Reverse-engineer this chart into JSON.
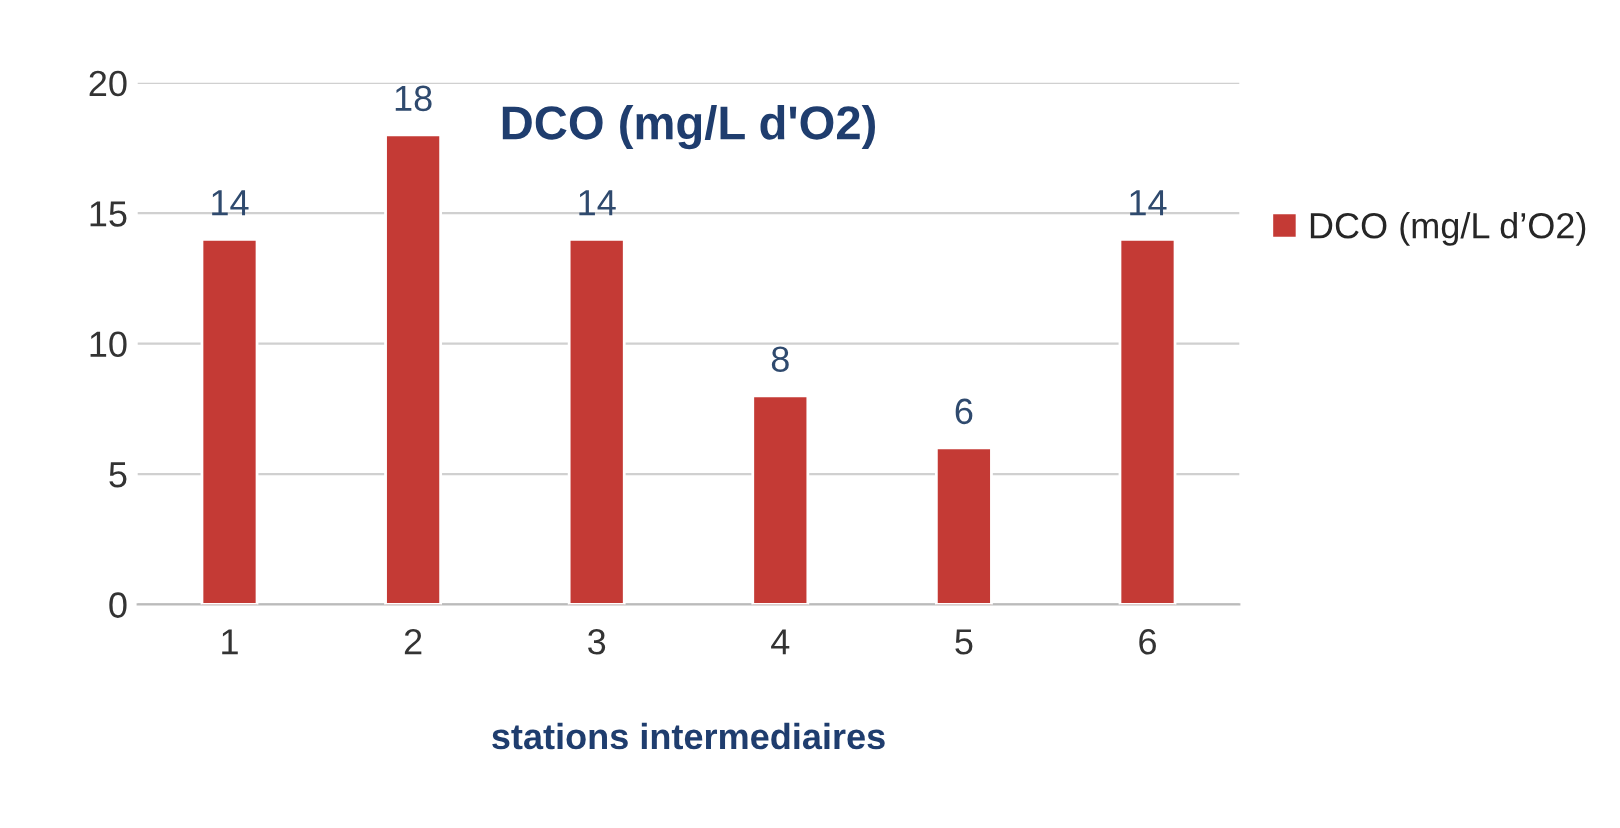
{
  "chart_data": {
    "type": "bar",
    "title": "DCO (mg/L d'O2)",
    "xlabel": "stations intermediaires",
    "categories": [
      "1",
      "2",
      "3",
      "4",
      "5",
      "6"
    ],
    "series": [
      {
        "name": "DCO (mg/L d’O2)",
        "color": "#c43a35",
        "values": [
          14,
          18,
          14,
          8,
          6,
          14
        ]
      }
    ],
    "ylim": [
      0,
      20
    ],
    "yticks": [
      0,
      5,
      10,
      15,
      20
    ],
    "grid": "y",
    "legend": "right",
    "data_labels": true
  }
}
